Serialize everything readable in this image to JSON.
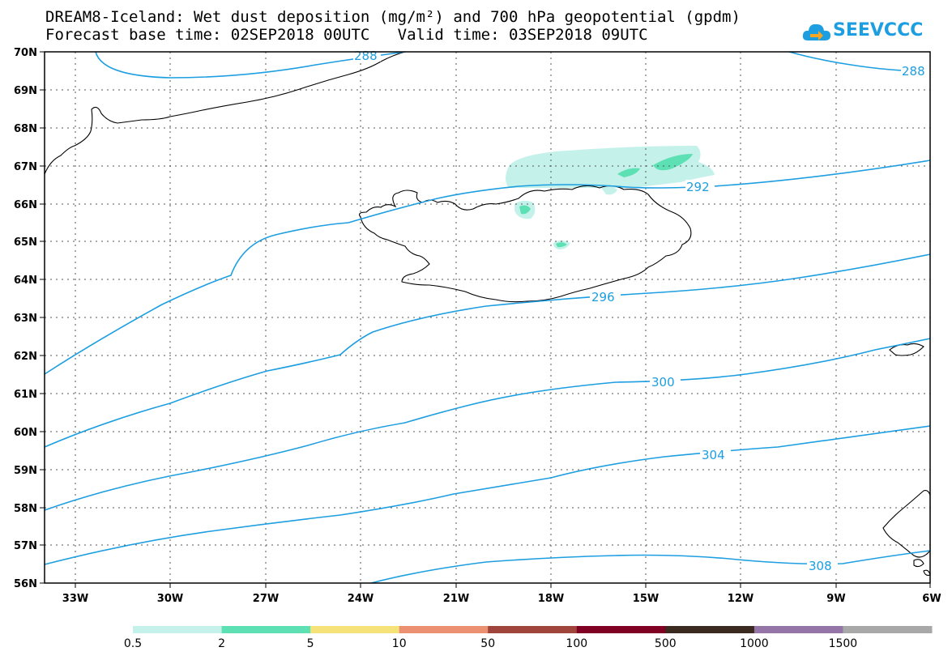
{
  "title": {
    "line1": "DREAM8-Iceland: Wet dust deposition (mg/m²) and 700 hPa geopotential (gpdm)",
    "line2": "Forecast base time: 02SEP2018 00UTC   Valid time: 03SEP2018 09UTC"
  },
  "logo": {
    "text": "SEEVCCC",
    "icon": "cloud-arrow-icon",
    "color": "#1c9ee0"
  },
  "map": {
    "lat_labels": [
      "70N",
      "69N",
      "68N",
      "67N",
      "66N",
      "65N",
      "64N",
      "63N",
      "62N",
      "61N",
      "60N",
      "59N",
      "58N",
      "57N",
      "56N"
    ],
    "lon_labels": [
      "33W",
      "30W",
      "27W",
      "24W",
      "21W",
      "18W",
      "15W",
      "12W",
      "9W",
      "6W"
    ],
    "contour_color": "#1c9ee0",
    "contour_labels": [
      "288",
      "288",
      "292",
      "296",
      "300",
      "304",
      "308"
    ]
  },
  "legend": {
    "labels": [
      "0.5",
      "2",
      "5",
      "10",
      "50",
      "100",
      "500",
      "1000",
      "1500"
    ],
    "colors": [
      "#c4f2ea",
      "#5ce0b4",
      "#f5e37a",
      "#eb9070",
      "#a0453c",
      "#800024",
      "#3a2a20",
      "#9575a8",
      "#a8a8a8"
    ]
  }
}
